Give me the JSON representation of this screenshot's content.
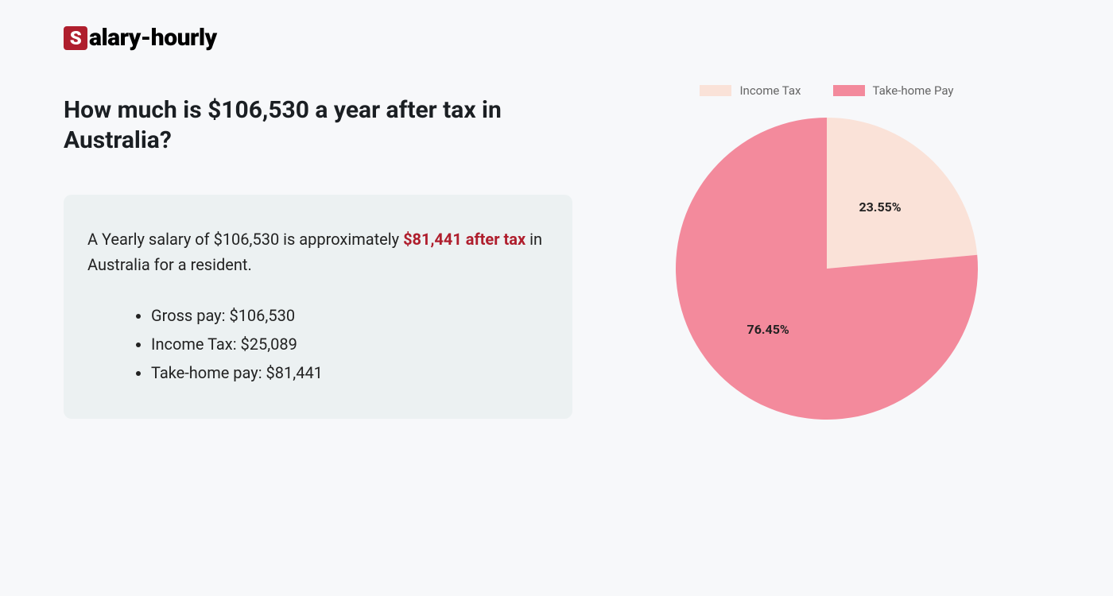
{
  "logo": {
    "badge_letter": "S",
    "rest": "alary-hourly"
  },
  "headline": "How much is $106,530 a year after tax in Australia?",
  "summary": {
    "prefix": "A Yearly salary of $106,530 is approximately ",
    "highlight": "$81,441 after tax",
    "suffix": " in Australia for a resident."
  },
  "bullets": [
    "Gross pay: $106,530",
    "Income Tax: $25,089",
    "Take-home pay: $81,441"
  ],
  "chart": {
    "type": "pie",
    "radius": 190,
    "background_color": "#f7f8fa",
    "card_background": "#ecf1f2",
    "highlight_color": "#af1e2d",
    "text_color": "#222222",
    "legend_text_color": "#666666",
    "slices": [
      {
        "label": "Income Tax",
        "value": 23.55,
        "display": "23.55%",
        "color": "#fae2d8"
      },
      {
        "label": "Take-home Pay",
        "value": 76.45,
        "display": "76.45%",
        "color": "#f38a9c"
      }
    ],
    "label_fontsize": 16,
    "label_fontweight": 700,
    "legend_swatch_w": 40,
    "legend_swatch_h": 14,
    "legend_fontsize": 15
  }
}
